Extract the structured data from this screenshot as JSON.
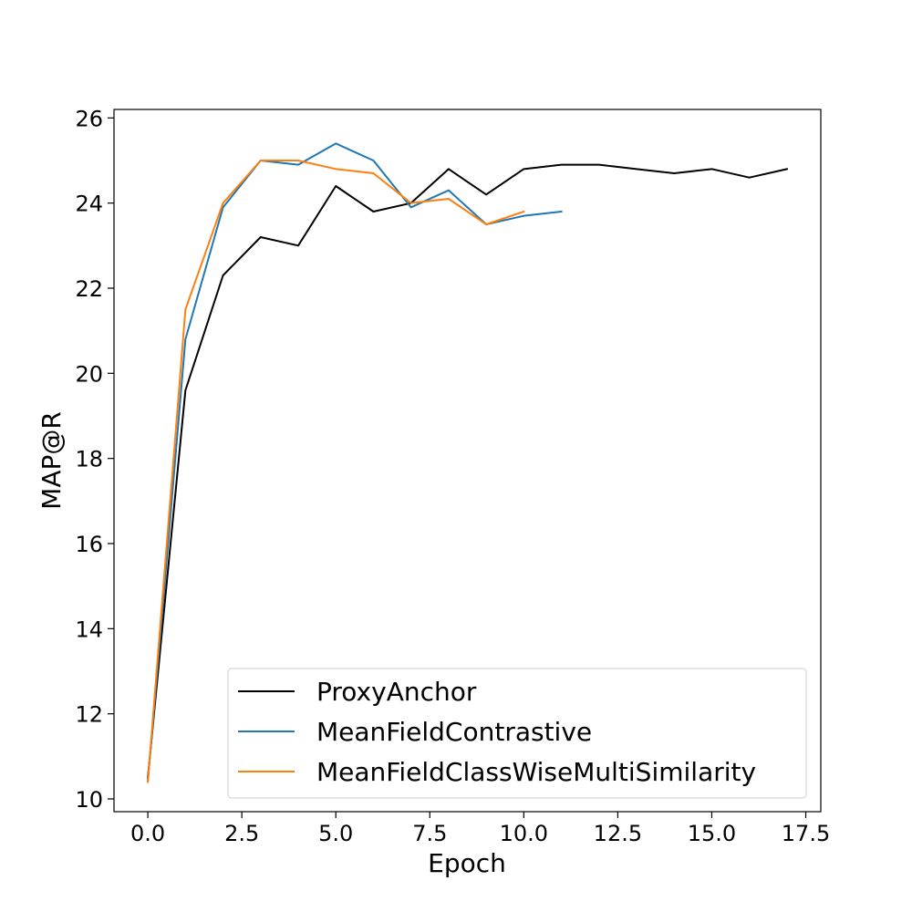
{
  "chart_data": {
    "type": "line",
    "title": "",
    "xlabel": "Epoch",
    "ylabel": "MAP@R",
    "xlim": [
      -0.9,
      17.9
    ],
    "ylim": [
      9.7,
      26.2
    ],
    "xticks": [
      0.0,
      2.5,
      5.0,
      7.5,
      10.0,
      12.5,
      15.0,
      17.5
    ],
    "xtick_labels": [
      "0.0",
      "2.5",
      "5.0",
      "7.5",
      "10.0",
      "12.5",
      "15.0",
      "17.5"
    ],
    "yticks": [
      10,
      12,
      14,
      16,
      18,
      20,
      22,
      24,
      26
    ],
    "ytick_labels": [
      "10",
      "12",
      "14",
      "16",
      "18",
      "20",
      "22",
      "24",
      "26"
    ],
    "grid": false,
    "legend_position": "bottom-right",
    "series": [
      {
        "name": "ProxyAnchor",
        "color": "#000000",
        "x": [
          0,
          1,
          2,
          3,
          4,
          5,
          6,
          7,
          8,
          9,
          10,
          11,
          12,
          13,
          14,
          15,
          16,
          17
        ],
        "y": [
          10.5,
          19.6,
          22.3,
          23.2,
          23.0,
          24.4,
          23.8,
          24.0,
          24.8,
          24.2,
          24.8,
          24.9,
          24.9,
          24.8,
          24.7,
          24.8,
          24.6,
          24.8
        ]
      },
      {
        "name": "MeanFieldContrastive",
        "color": "#1f77b4",
        "x": [
          0,
          1,
          2,
          3,
          4,
          5,
          6,
          7,
          8,
          9,
          10,
          11
        ],
        "y": [
          10.4,
          20.8,
          23.9,
          25.0,
          24.9,
          25.4,
          25.0,
          23.9,
          24.3,
          23.5,
          23.7,
          23.8
        ]
      },
      {
        "name": "MeanFieldClassWiseMultiSimilarity",
        "color": "#ff7f0e",
        "x": [
          0,
          1,
          2,
          3,
          4,
          5,
          6,
          7,
          8,
          9,
          10
        ],
        "y": [
          10.4,
          21.5,
          24.0,
          25.0,
          25.0,
          24.8,
          24.7,
          24.0,
          24.1,
          23.5,
          23.8
        ]
      }
    ]
  }
}
